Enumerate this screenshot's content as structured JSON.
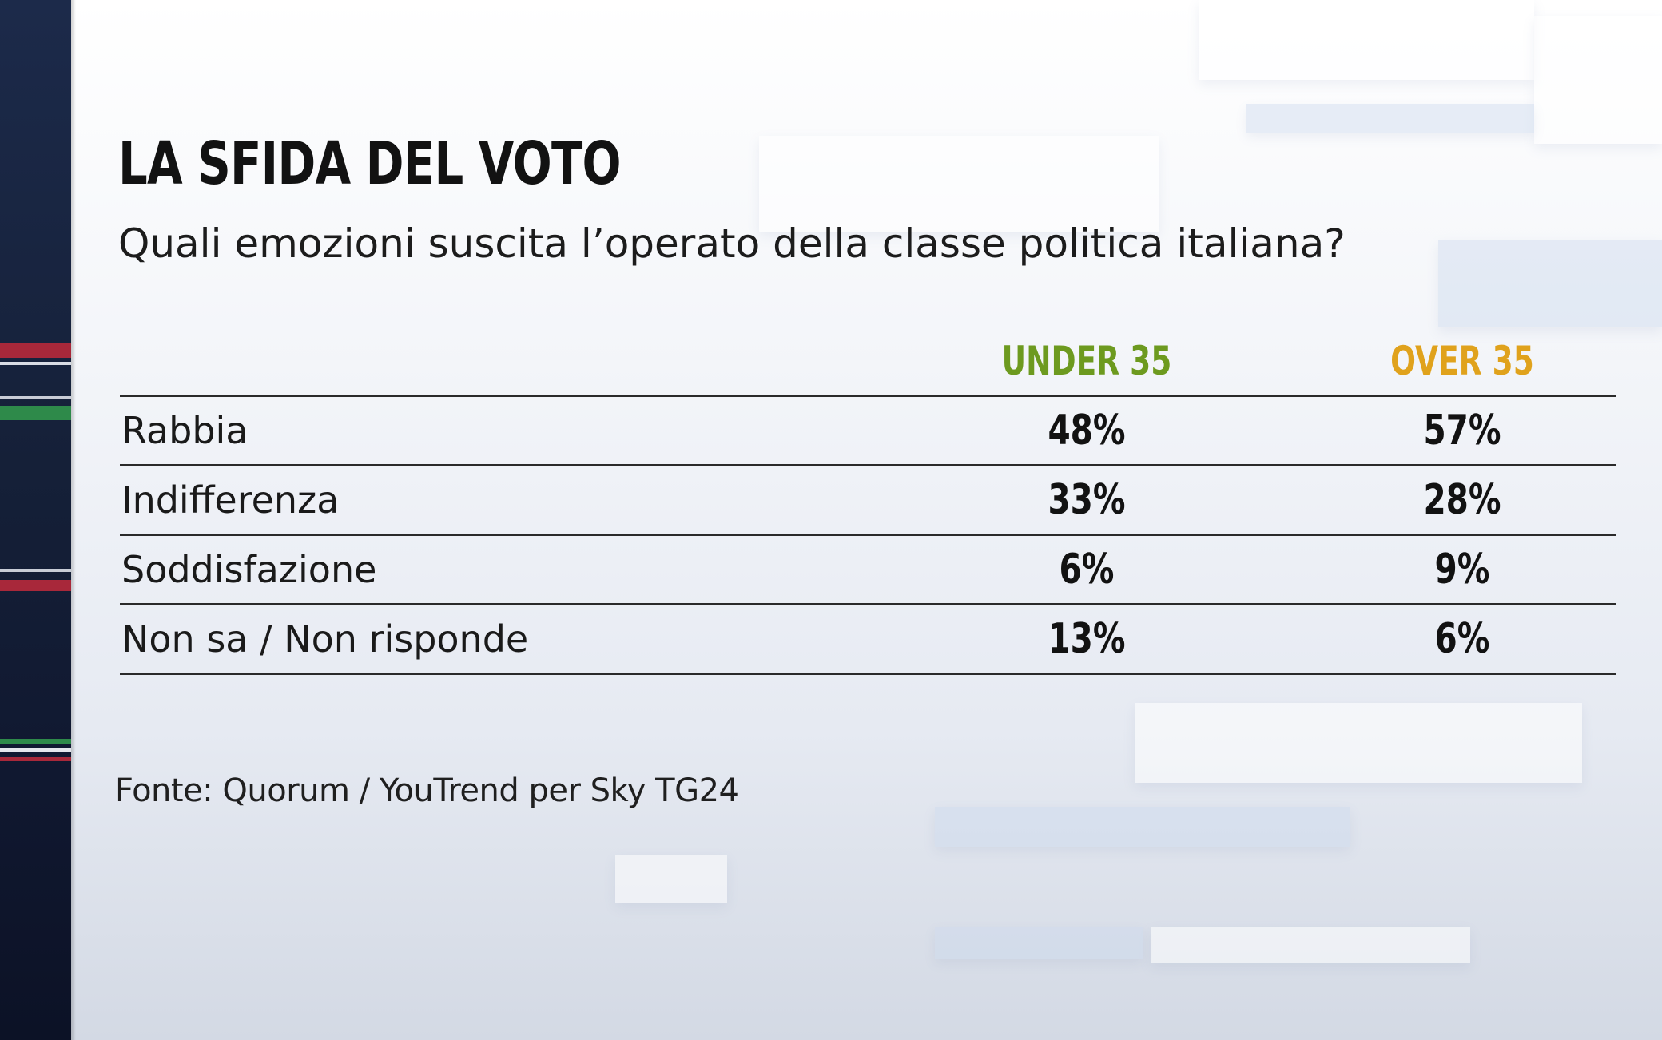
{
  "title": "LA SFIDA DEL VOTO",
  "subtitle": "Quali emozioni suscita l’operato della classe politica italiana?",
  "source": "Fonte: Quorum / YouTrend per Sky TG24",
  "colors": {
    "under_35": "#6d9a1f",
    "over_35": "#e0a21c",
    "text": "#121212",
    "left_strip": "#152038"
  },
  "chart_data": {
    "type": "table",
    "columns": [
      "UNDER 35",
      "OVER 35"
    ],
    "rows": [
      {
        "label": "Rabbia",
        "values": [
          "48%",
          "57%"
        ]
      },
      {
        "label": "Indifferenza",
        "values": [
          "33%",
          "28%"
        ]
      },
      {
        "label": "Soddisfazione",
        "values": [
          "6%",
          "9%"
        ]
      },
      {
        "label": "Non sa / Non risponde",
        "values": [
          "13%",
          "6%"
        ]
      }
    ],
    "series": [
      {
        "name": "UNDER 35",
        "values": [
          48,
          33,
          6,
          13
        ]
      },
      {
        "name": "OVER 35",
        "values": [
          57,
          28,
          9,
          6
        ]
      }
    ],
    "categories": [
      "Rabbia",
      "Indifferenza",
      "Soddisfazione",
      "Non sa / Non risponde"
    ]
  }
}
